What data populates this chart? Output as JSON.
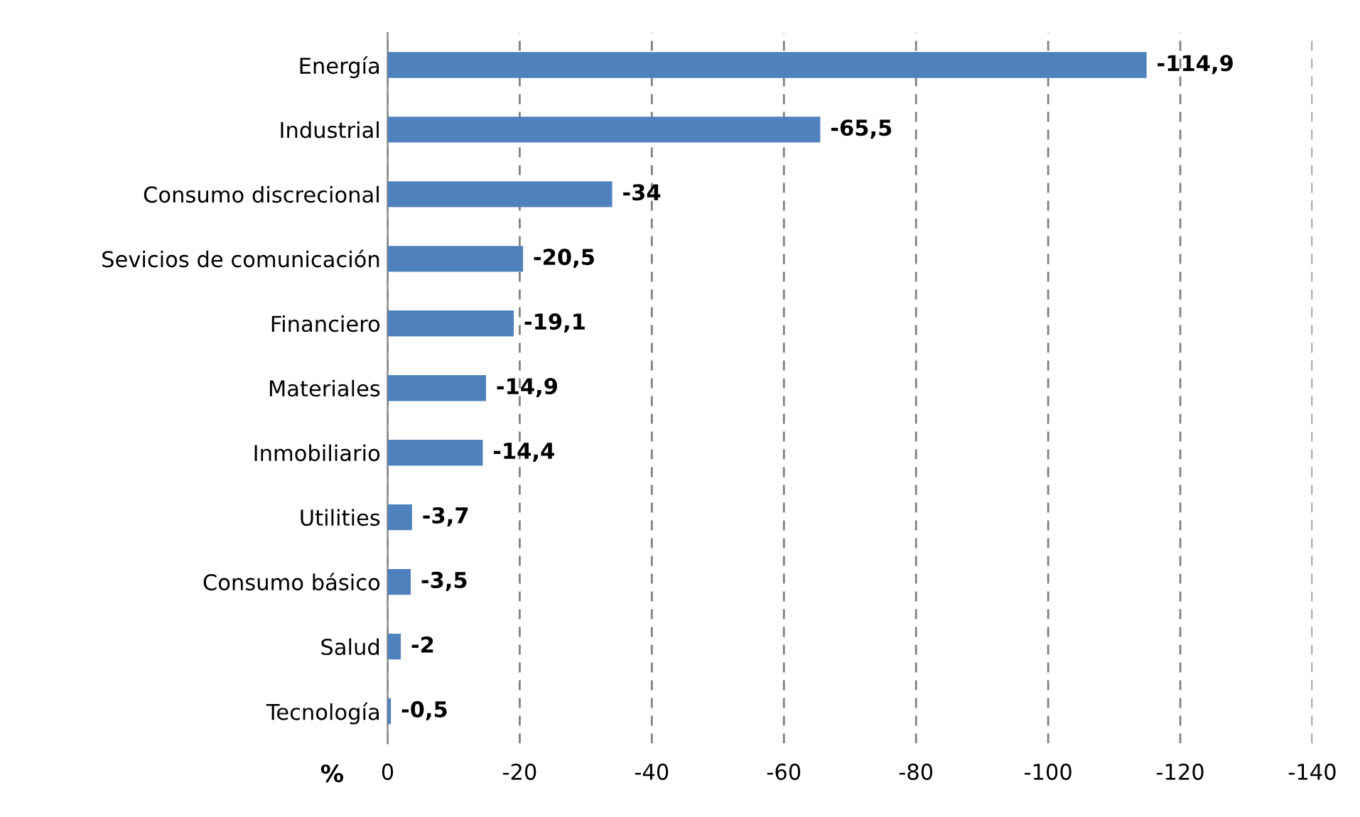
{
  "chart_data": {
    "type": "bar",
    "orientation": "horizontal",
    "xlabel": "%",
    "categories": [
      "Energía",
      "Industrial",
      "Consumo discrecional",
      "Sevicios de comunicación",
      "Financiero",
      "Materiales",
      "Inmobiliario",
      "Utilities",
      "Consumo básico",
      "Salud",
      "Tecnología"
    ],
    "values": [
      -114.9,
      -65.5,
      -34,
      -20.5,
      -19.1,
      -14.9,
      -14.4,
      -3.7,
      -3.5,
      -2,
      -0.5
    ],
    "value_labels": [
      "-114,9",
      "-65,5",
      "-34",
      "-20,5",
      "-19,1",
      "-14,9",
      "-14,4",
      "-3,7",
      "-3,5",
      "-2",
      "-0,5"
    ],
    "color": "#4f81bd",
    "xlim": [
      0,
      -140
    ],
    "xticks": [
      0,
      -20,
      -40,
      -60,
      -80,
      -100,
      -120,
      -140
    ],
    "grid": "x"
  }
}
